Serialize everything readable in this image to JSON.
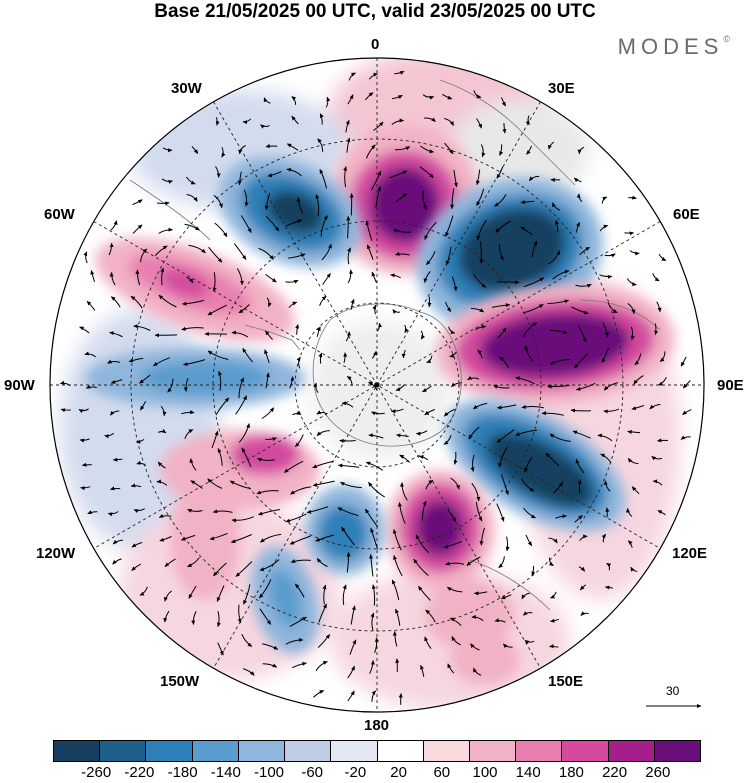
{
  "title": "Base 21/05/2025 00 UTC, valid 23/05/2025 00 UTC",
  "brand": "MODES",
  "brand_mark": "©",
  "longitude_labels": {
    "top": "0",
    "top_right": "30E",
    "right_upper": "60E",
    "right": "90E",
    "right_lower": "120E",
    "bottom_right": "150E",
    "bottom": "180",
    "bottom_left": "150W",
    "left_lower": "120W",
    "left": "90W",
    "left_upper": "60W",
    "top_left": "30W"
  },
  "vector_scale_label": "30",
  "colorbar": {
    "ticks": [
      "-260",
      "-220",
      "-180",
      "-140",
      "-100",
      "-60",
      "-20",
      "20",
      "60",
      "100",
      "140",
      "180",
      "220",
      "260"
    ],
    "colors": [
      "#173f5f",
      "#1f5f8b",
      "#2f80b8",
      "#5a9ccd",
      "#8fb6dc",
      "#bfcde6",
      "#e5e8f3",
      "#ffffff",
      "#f9d9df",
      "#f2b2c5",
      "#e87fb0",
      "#d34a9f",
      "#a51e8b",
      "#6a0f7a"
    ]
  },
  "anomaly_features": [
    {
      "sign": "negative",
      "level": -260,
      "region": "0-60E, upper right"
    },
    {
      "sign": "positive",
      "level": 260,
      "region": "60E-90E, right"
    },
    {
      "sign": "negative",
      "level": -260,
      "region": "90E-120E, lower right"
    },
    {
      "sign": "positive",
      "level": 260,
      "region": "near 0, top"
    },
    {
      "sign": "negative",
      "level": -220,
      "region": "30W-60W, upper left"
    },
    {
      "sign": "positive",
      "level": 180,
      "region": "60W-90W, left"
    },
    {
      "sign": "negative",
      "level": -180,
      "region": "90W, left"
    },
    {
      "sign": "positive",
      "level": 220,
      "region": "150E-180, bottom"
    },
    {
      "sign": "negative",
      "level": -180,
      "region": "150W-180, bottom"
    },
    {
      "sign": "positive",
      "level": 180,
      "region": "90W-120W, lower left"
    }
  ]
}
